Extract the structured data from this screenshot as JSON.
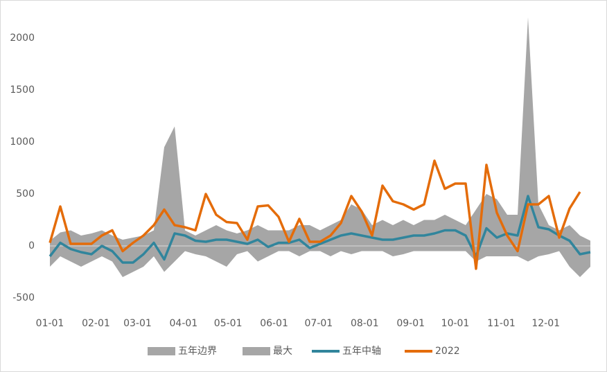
{
  "chart_data": {
    "type": "line",
    "x": [
      "01-01",
      "01-08",
      "01-15",
      "01-22",
      "01-29",
      "02-05",
      "02-12",
      "02-19",
      "02-26",
      "03-05",
      "03-12",
      "03-19",
      "03-26",
      "04-02",
      "04-09",
      "04-16",
      "04-23",
      "04-30",
      "05-07",
      "05-14",
      "05-21",
      "05-28",
      "06-04",
      "06-11",
      "06-18",
      "06-25",
      "07-02",
      "07-09",
      "07-16",
      "07-23",
      "07-30",
      "08-06",
      "08-13",
      "08-20",
      "08-27",
      "09-03",
      "09-10",
      "09-17",
      "09-24",
      "10-01",
      "10-08",
      "10-15",
      "10-22",
      "10-29",
      "11-05",
      "11-12",
      "11-19",
      "11-26",
      "12-03",
      "12-10",
      "12-17",
      "12-24",
      "12-31"
    ],
    "xlim": [
      "01-01",
      "12-31"
    ],
    "xticks": [
      "01-01",
      "02-01",
      "03-01",
      "04-01",
      "05-01",
      "06-01",
      "07-01",
      "08-01",
      "09-01",
      "10-01",
      "11-01",
      "12-01"
    ],
    "ylim": [
      -500,
      2300
    ],
    "yticks": [
      -500,
      0,
      500,
      1000,
      1500,
      2000
    ],
    "series": [
      {
        "name": "五年边界",
        "style": "area",
        "color": "#a6a6a6",
        "values": [
          -200,
          -100,
          -150,
          -200,
          -150,
          -100,
          -150,
          -300,
          -250,
          -200,
          -100,
          -250,
          -150,
          -50,
          -80,
          -100,
          -150,
          -200,
          -80,
          -50,
          -150,
          -100,
          -50,
          -50,
          -100,
          -50,
          -50,
          -100,
          -50,
          -80,
          -50,
          -50,
          -50,
          -100,
          -80,
          -50,
          -50,
          -50,
          -50,
          -50,
          -50,
          -150,
          -100,
          -100,
          -100,
          -100,
          -150,
          -100,
          -80,
          -50,
          -200,
          -300,
          -200
        ]
      },
      {
        "name": "最大",
        "style": "area",
        "color": "#a6a6a6",
        "values": [
          50,
          130,
          150,
          100,
          120,
          150,
          100,
          60,
          80,
          100,
          150,
          950,
          1150,
          150,
          100,
          150,
          200,
          150,
          120,
          150,
          200,
          150,
          150,
          150,
          200,
          200,
          150,
          200,
          250,
          400,
          350,
          200,
          250,
          200,
          250,
          200,
          250,
          250,
          300,
          250,
          200,
          350,
          500,
          450,
          300,
          300,
          2200,
          400,
          200,
          150,
          200,
          100,
          50
        ]
      },
      {
        "name": "五年中轴",
        "style": "line",
        "color": "#31859c",
        "values": [
          -100,
          30,
          -30,
          -60,
          -80,
          0,
          -50,
          -160,
          -160,
          -80,
          30,
          -130,
          120,
          100,
          50,
          40,
          60,
          60,
          40,
          20,
          60,
          -10,
          30,
          30,
          60,
          -20,
          20,
          60,
          100,
          120,
          100,
          80,
          60,
          60,
          80,
          100,
          100,
          120,
          150,
          150,
          100,
          -100,
          170,
          80,
          120,
          100,
          480,
          180,
          160,
          100,
          50,
          -80,
          -60
        ]
      },
      {
        "name": "2022",
        "style": "line",
        "color": "#e46c0a",
        "values": [
          30,
          380,
          20,
          20,
          20,
          100,
          150,
          -50,
          30,
          100,
          200,
          350,
          200,
          180,
          150,
          500,
          300,
          230,
          220,
          60,
          380,
          390,
          280,
          40,
          260,
          40,
          40,
          100,
          220,
          480,
          330,
          100,
          580,
          430,
          400,
          350,
          400,
          820,
          550,
          600,
          600,
          -220,
          780,
          320,
          100,
          -50,
          400,
          400,
          480,
          80,
          360,
          520,
          null
        ]
      }
    ]
  }
}
